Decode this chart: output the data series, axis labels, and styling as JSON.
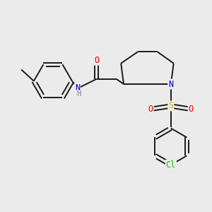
{
  "background_color": "#ebebeb",
  "bond_color": "#1a1a1a",
  "bond_width": 1.4,
  "atom_colors": {
    "O": "#ff0000",
    "N": "#0000dd",
    "S": "#ccbb00",
    "Cl": "#33bb00",
    "C": "#1a1a1a",
    "H": "#6a8a8a"
  },
  "font_size": 8.5,
  "font_size_small": 7.5
}
